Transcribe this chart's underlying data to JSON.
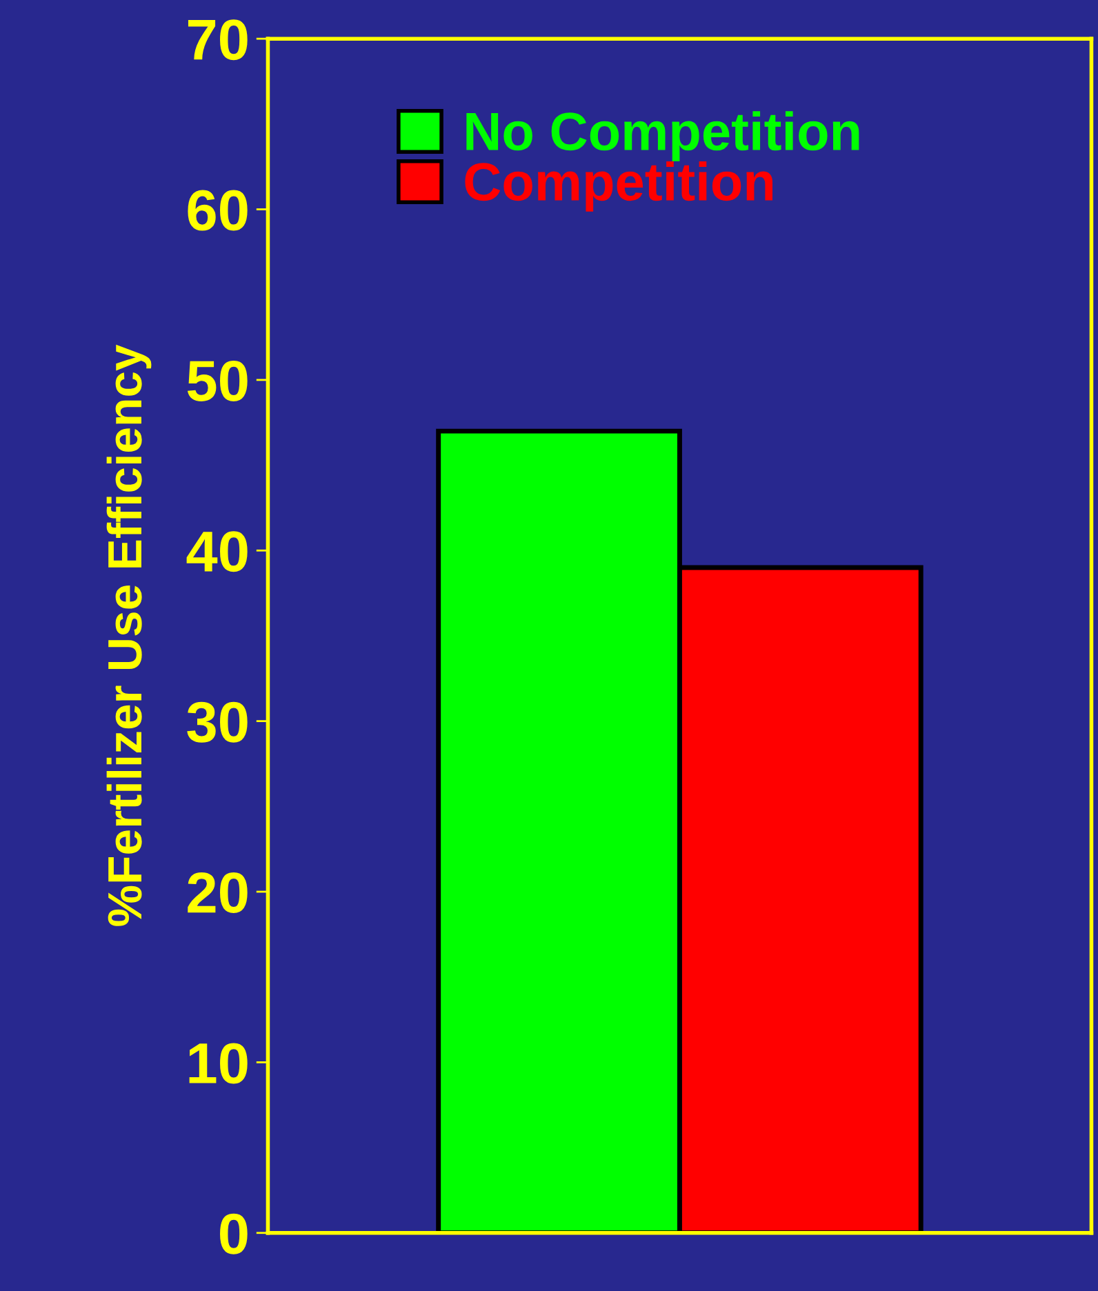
{
  "chart_data": {
    "type": "bar",
    "ylabel": "%Fertilizer Use Efficiency",
    "categories": [
      null
    ],
    "series": [
      {
        "name": "No Competition",
        "color": "#00ff00",
        "values": [
          47
        ]
      },
      {
        "name": "Competition",
        "color": "#ff0000",
        "values": [
          39
        ]
      }
    ],
    "ylim": [
      0,
      70
    ],
    "yticks": [
      0,
      10,
      20,
      30,
      40,
      50,
      60,
      70
    ],
    "grid": false,
    "legend": "top left"
  }
}
